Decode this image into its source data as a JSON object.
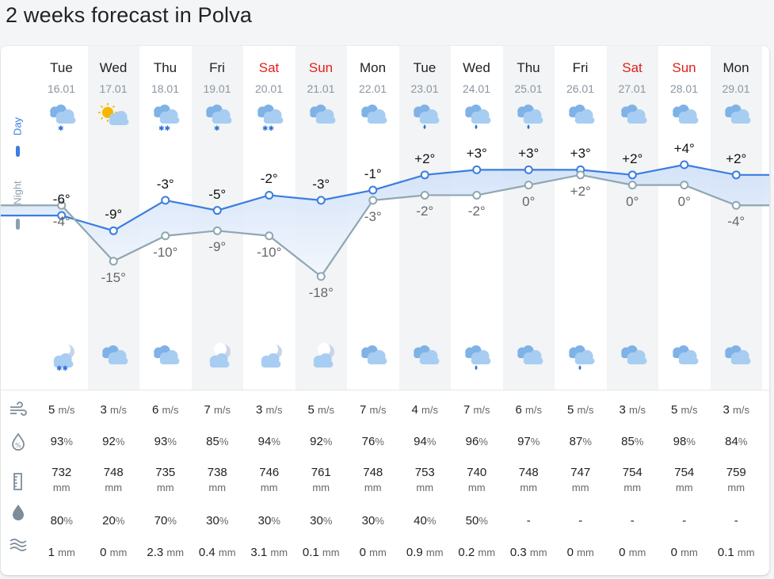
{
  "page_title": "2 weeks forecast in Polva",
  "side": {
    "day_label": "Day",
    "night_label": "Night"
  },
  "units": {
    "wind": "m/s",
    "humidity": "%",
    "pressure": "mm",
    "precip_prob": "%",
    "precip": "mm"
  },
  "days": [
    {
      "name": "Tue",
      "date": "16.01",
      "weekend": false,
      "day_icon": "cloud-snow-light",
      "night_icon": "moon-cloud-snow",
      "day_temp": "-6°",
      "night_temp": "-4°",
      "day_val": -6,
      "night_val": -4,
      "wind": "5",
      "humidity": "93",
      "pressure": "732",
      "precip_prob": "80",
      "precip_prob_unit": "%",
      "precip": "1"
    },
    {
      "name": "Wed",
      "date": "17.01",
      "weekend": false,
      "day_icon": "sun-cloud",
      "night_icon": "cloudy",
      "day_temp": "-9°",
      "night_temp": "-15°",
      "day_val": -9,
      "night_val": -15,
      "wind": "3",
      "humidity": "92",
      "pressure": "748",
      "precip_prob": "20",
      "precip_prob_unit": "%",
      "precip": "0"
    },
    {
      "name": "Thu",
      "date": "18.01",
      "weekend": false,
      "day_icon": "cloud-snow",
      "night_icon": "cloudy",
      "day_temp": "-3°",
      "night_temp": "-10°",
      "day_val": -3,
      "night_val": -10,
      "wind": "6",
      "humidity": "93",
      "pressure": "735",
      "precip_prob": "70",
      "precip_prob_unit": "%",
      "precip": "2.3"
    },
    {
      "name": "Fri",
      "date": "19.01",
      "weekend": false,
      "day_icon": "cloud-snow-light",
      "night_icon": "moon-cloud",
      "day_temp": "-5°",
      "night_temp": "-9°",
      "day_val": -5,
      "night_val": -9,
      "wind": "7",
      "humidity": "85",
      "pressure": "738",
      "precip_prob": "30",
      "precip_prob_unit": "%",
      "precip": "0.4"
    },
    {
      "name": "Sat",
      "date": "20.01",
      "weekend": true,
      "day_icon": "cloud-snow",
      "night_icon": "moon-cloud",
      "day_temp": "-2°",
      "night_temp": "-10°",
      "day_val": -2,
      "night_val": -10,
      "wind": "3",
      "humidity": "94",
      "pressure": "746",
      "precip_prob": "30",
      "precip_prob_unit": "%",
      "precip": "3.1"
    },
    {
      "name": "Sun",
      "date": "21.01",
      "weekend": true,
      "day_icon": "cloudy",
      "night_icon": "moon-cloud",
      "day_temp": "-3°",
      "night_temp": "-18°",
      "day_val": -3,
      "night_val": -18,
      "wind": "5",
      "humidity": "92",
      "pressure": "761",
      "precip_prob": "30",
      "precip_prob_unit": "%",
      "precip": "0.1"
    },
    {
      "name": "Mon",
      "date": "22.01",
      "weekend": false,
      "day_icon": "cloudy",
      "night_icon": "cloudy",
      "day_temp": "-1°",
      "night_temp": "-3°",
      "day_val": -1,
      "night_val": -3,
      "wind": "7",
      "humidity": "76",
      "pressure": "748",
      "precip_prob": "30",
      "precip_prob_unit": "%",
      "precip": "0"
    },
    {
      "name": "Tue",
      "date": "23.01",
      "weekend": false,
      "day_icon": "cloud-rain",
      "night_icon": "cloudy",
      "day_temp": "+2°",
      "night_temp": "-2°",
      "day_val": 2,
      "night_val": -2,
      "wind": "4",
      "humidity": "94",
      "pressure": "753",
      "precip_prob": "40",
      "precip_prob_unit": "%",
      "precip": "0.9"
    },
    {
      "name": "Wed",
      "date": "24.01",
      "weekend": false,
      "day_icon": "cloud-rain",
      "night_icon": "cloud-rain",
      "day_temp": "+3°",
      "night_temp": "-2°",
      "day_val": 3,
      "night_val": -2,
      "wind": "7",
      "humidity": "96",
      "pressure": "740",
      "precip_prob": "50",
      "precip_prob_unit": "%",
      "precip": "0.2"
    },
    {
      "name": "Thu",
      "date": "25.01",
      "weekend": false,
      "day_icon": "cloud-rain",
      "night_icon": "cloudy",
      "day_temp": "+3°",
      "night_temp": "0°",
      "day_val": 3,
      "night_val": 0,
      "wind": "6",
      "humidity": "97",
      "pressure": "748",
      "precip_prob": "-",
      "precip_prob_unit": "",
      "precip": "0.3"
    },
    {
      "name": "Fri",
      "date": "26.01",
      "weekend": false,
      "day_icon": "cloudy",
      "night_icon": "cloud-rain",
      "day_temp": "+3°",
      "night_temp": "+2°",
      "day_val": 3,
      "night_val": 2,
      "wind": "5",
      "humidity": "87",
      "pressure": "747",
      "precip_prob": "-",
      "precip_prob_unit": "",
      "precip": "0"
    },
    {
      "name": "Sat",
      "date": "27.01",
      "weekend": true,
      "day_icon": "cloudy",
      "night_icon": "cloudy",
      "day_temp": "+2°",
      "night_temp": "0°",
      "day_val": 2,
      "night_val": 0,
      "wind": "3",
      "humidity": "85",
      "pressure": "754",
      "precip_prob": "-",
      "precip_prob_unit": "",
      "precip": "0"
    },
    {
      "name": "Sun",
      "date": "28.01",
      "weekend": true,
      "day_icon": "cloudy",
      "night_icon": "cloudy",
      "day_temp": "+4°",
      "night_temp": "0°",
      "day_val": 4,
      "night_val": 0,
      "wind": "5",
      "humidity": "98",
      "pressure": "754",
      "precip_prob": "-",
      "precip_prob_unit": "",
      "precip": "0"
    },
    {
      "name": "Mon",
      "date": "29.01",
      "weekend": false,
      "day_icon": "cloudy",
      "night_icon": "cloudy",
      "day_temp": "+2°",
      "night_temp": "-4°",
      "day_val": 2,
      "night_val": -4,
      "wind": "3",
      "humidity": "84",
      "pressure": "759",
      "precip_prob": "-",
      "precip_prob_unit": "",
      "precip": "0.1"
    }
  ],
  "row_icons": [
    "wind-icon",
    "humidity-icon",
    "pressure-icon",
    "precip-probability-icon",
    "precipitation-icon"
  ],
  "colors": {
    "day_line": "#3b7de0",
    "night_line": "#8fa7b2",
    "weekend": "#e0201b",
    "cloud": "#7fb2e6",
    "sun": "#f7b500",
    "snow": "#2a6fd6"
  }
}
